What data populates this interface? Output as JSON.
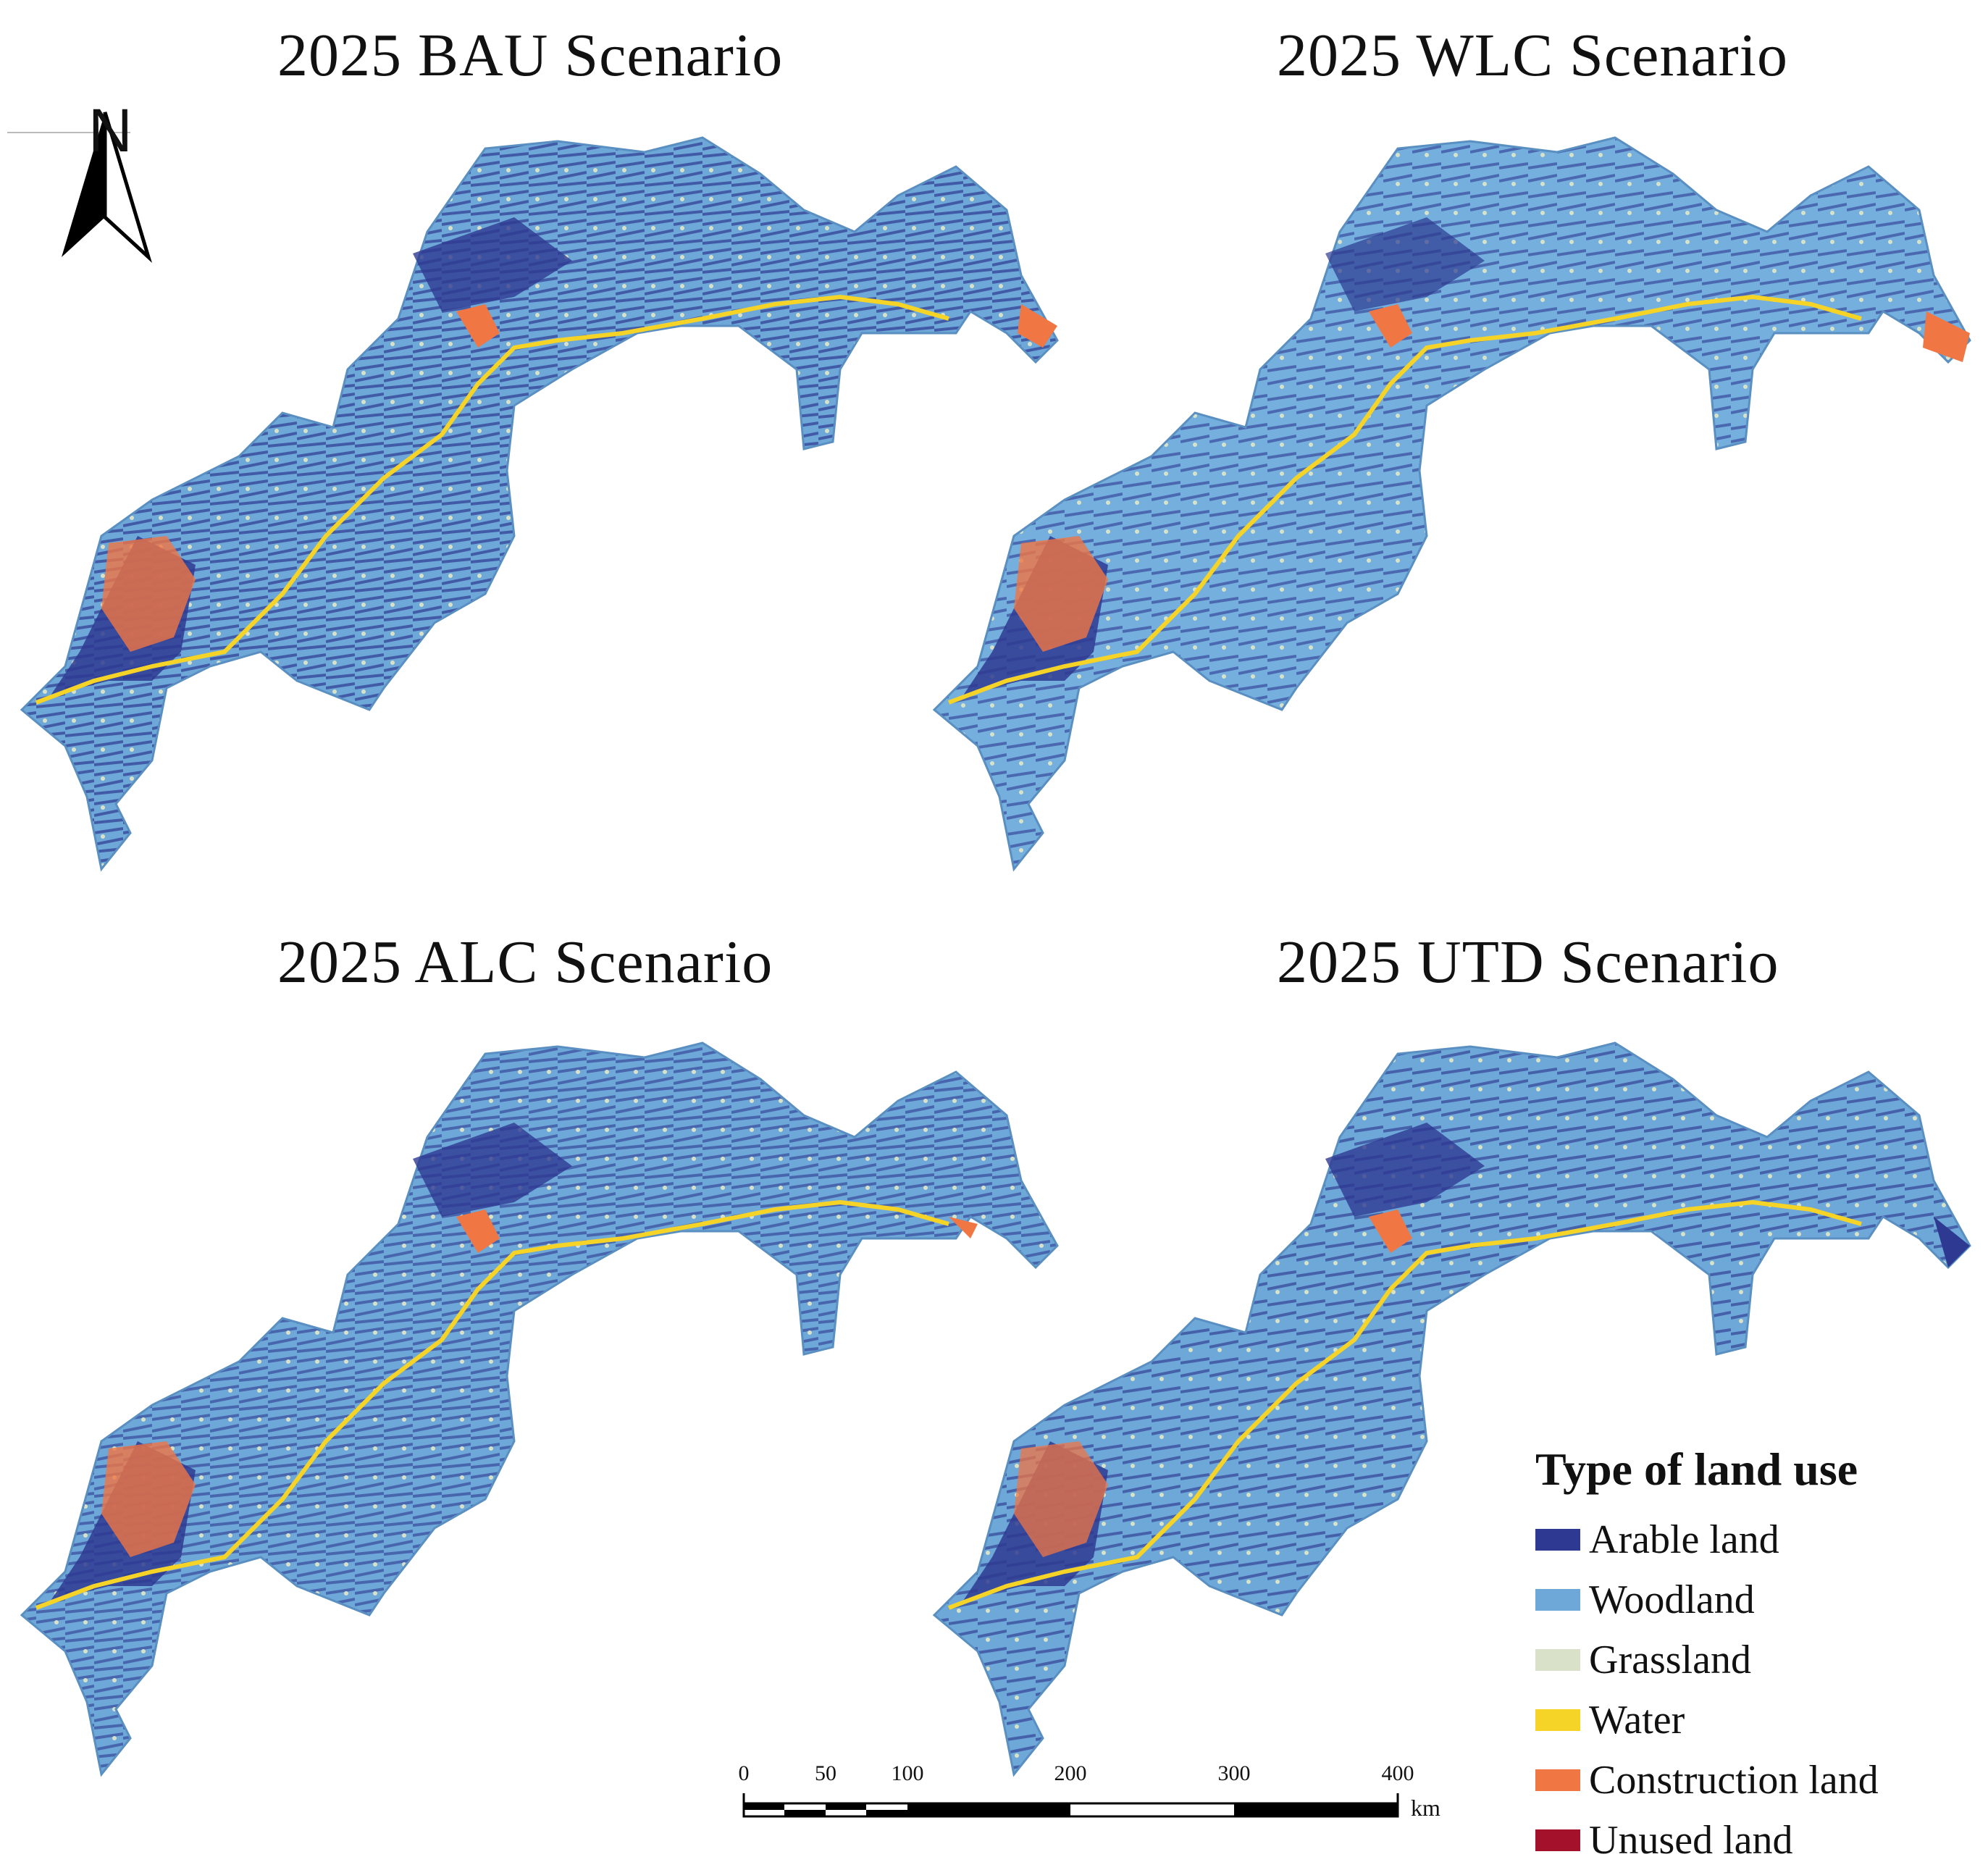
{
  "titles": {
    "bau": "2025 BAU Scenario",
    "wlc": "2025 WLC Scenario",
    "alc": "2025 ALC Scenario",
    "utd": "2025 UTD Scenario"
  },
  "north_arrow": {
    "label": "N"
  },
  "legend": {
    "title": "Type of land use",
    "items": [
      {
        "label": "Arable land",
        "color": "#2e3a92"
      },
      {
        "label": "Woodland",
        "color": "#6ea8d8"
      },
      {
        "label": "Grassland",
        "color": "#d9e2c8"
      },
      {
        "label": "Water",
        "color": "#f5d327"
      },
      {
        "label": "Construction land",
        "color": "#f07644"
      },
      {
        "label": "Unused land",
        "color": "#a3122a"
      }
    ]
  },
  "scalebar": {
    "ticks": [
      "0",
      "50",
      "100",
      "200",
      "300",
      "400"
    ],
    "unit": "km"
  }
}
